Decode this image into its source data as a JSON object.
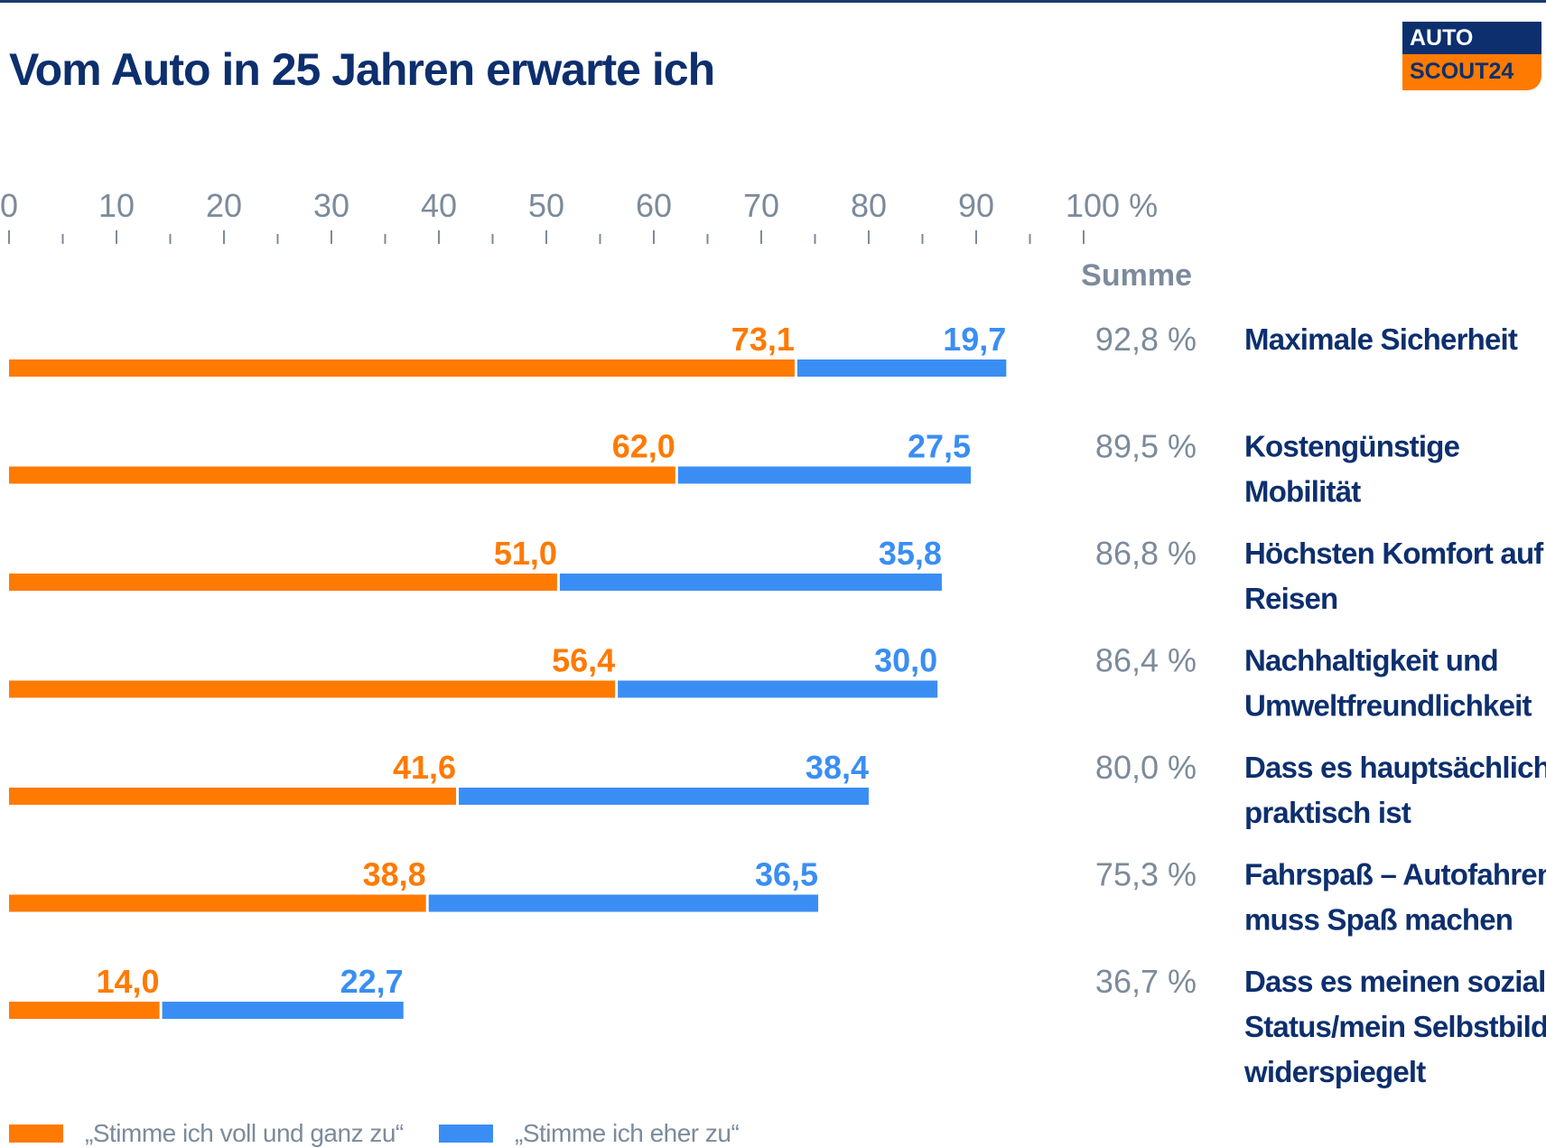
{
  "title": "Vom Auto in 25 Jahren erwarte ich",
  "logo": {
    "line1": "AUTO",
    "line2": "SCOUT24"
  },
  "colors": {
    "orange": "#ff7a00",
    "blue": "#3a8ef3",
    "navy": "#0d2f6e",
    "gray": "#7c8b9b"
  },
  "chart_data": {
    "type": "bar",
    "orientation": "horizontal",
    "stacked": true,
    "x_ticks": [
      "0",
      "10",
      "20",
      "30",
      "40",
      "50",
      "60",
      "70",
      "80",
      "90",
      "100 %"
    ],
    "xlim": [
      0,
      100
    ],
    "sum_header": "Summe",
    "categories": [
      [
        "Maximale Sicherheit"
      ],
      [
        "Kostengünstige",
        "Mobilität"
      ],
      [
        "Höchsten Komfort auf",
        "Reisen"
      ],
      [
        "Nachhaltigkeit und",
        "Umweltfreundlichkeit"
      ],
      [
        "Dass es hauptsächlich",
        "praktisch ist"
      ],
      [
        "Fahrspaß – Autofahren",
        "muss Spaß machen"
      ],
      [
        "Dass es meinen sozialen",
        "Status/mein Selbstbild",
        "widerspiegelt"
      ]
    ],
    "series": [
      {
        "name": "„Stimme ich voll und ganz zu“",
        "color": "#ff7a00",
        "values": [
          73.1,
          62.0,
          51.0,
          56.4,
          41.6,
          38.8,
          14.0
        ],
        "labels": [
          "73,1",
          "62,0",
          "51,0",
          "56,4",
          "41,6",
          "38,8",
          "14,0"
        ]
      },
      {
        "name": "„Stimme ich eher zu“",
        "color": "#3a8ef3",
        "values": [
          19.7,
          27.5,
          35.8,
          30.0,
          38.4,
          36.5,
          22.7
        ],
        "labels": [
          "19,7",
          "27,5",
          "35,8",
          "30,0",
          "38,4",
          "36,5",
          "22,7"
        ]
      }
    ],
    "sums": [
      "92,8 %",
      "89,5 %",
      "86,8 %",
      "86,4 %",
      "80,0 %",
      "75,3 %",
      "36,7 %"
    ],
    "legend": "bottom-left"
  }
}
